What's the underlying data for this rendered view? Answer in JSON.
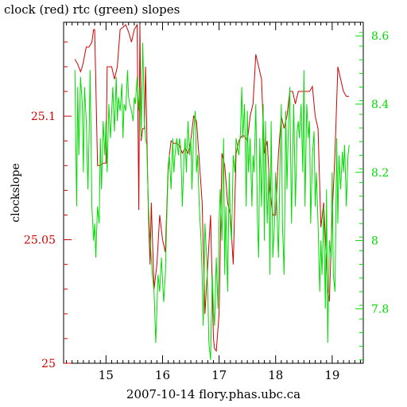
{
  "chart_data": {
    "type": "line",
    "title": "clock (red) rtc (green) slopes",
    "xlabel": "2007-10-14 flory.phas.ubc.ca",
    "ylabel": "clockslope",
    "x_ticks": [
      "15",
      "16",
      "17",
      "18",
      "19"
    ],
    "y_left_ticks": [
      "25",
      "25.05",
      "25.1"
    ],
    "y_right_ticks": [
      "7.8",
      "8",
      "8.2",
      "8.4",
      "8.6"
    ],
    "xlim": [
      14.25,
      19.55
    ],
    "ylim_left": [
      25.0,
      25.138
    ],
    "ylim_right": [
      7.64,
      8.64
    ],
    "grid": false,
    "series": [
      {
        "name": "clock",
        "color": "#d40000",
        "axis": "left",
        "x": [
          14.45,
          14.5,
          14.55,
          14.58,
          14.6,
          14.65,
          14.7,
          14.75,
          14.78,
          14.8,
          14.85,
          14.9,
          14.95,
          15.0,
          15.02,
          15.05,
          15.1,
          15.15,
          15.2,
          15.25,
          15.3,
          15.35,
          15.4,
          15.45,
          15.5,
          15.55,
          15.58,
          15.6,
          15.62,
          15.65,
          15.68,
          15.7,
          15.72,
          15.75,
          15.78,
          15.8,
          15.85,
          15.9,
          15.95,
          16.0,
          16.05,
          16.1,
          16.15,
          16.2,
          16.25,
          16.3,
          16.35,
          16.4,
          16.45,
          16.5,
          16.55,
          16.6,
          16.65,
          16.7,
          16.75,
          16.8,
          16.85,
          16.9,
          16.92,
          16.95,
          17.0,
          17.05,
          17.1,
          17.15,
          17.2,
          17.25,
          17.3,
          17.35,
          17.4,
          17.45,
          17.5,
          17.55,
          17.6,
          17.65,
          17.7,
          17.75,
          17.8,
          17.85,
          17.9,
          17.95,
          18.0,
          18.05,
          18.1,
          18.15,
          18.2,
          18.25,
          18.3,
          18.35,
          18.4,
          18.45,
          18.5,
          18.55,
          18.6,
          18.65,
          18.7,
          18.75,
          18.8,
          18.85,
          18.9,
          18.92,
          18.95,
          19.0,
          19.05,
          19.1,
          19.15,
          19.2,
          19.25,
          19.3
        ],
        "y": [
          25.123,
          25.121,
          25.118,
          25.12,
          25.122,
          25.128,
          25.128,
          25.13,
          25.135,
          25.135,
          25.08,
          25.08,
          25.081,
          25.081,
          25.12,
          25.12,
          25.12,
          25.115,
          25.12,
          25.135,
          25.136,
          25.137,
          25.134,
          25.13,
          25.135,
          25.137,
          25.062,
          25.137,
          25.09,
          25.095,
          25.095,
          25.12,
          25.095,
          25.06,
          25.04,
          25.065,
          25.03,
          25.04,
          25.06,
          25.05,
          25.045,
          25.08,
          25.09,
          25.089,
          25.089,
          25.088,
          25.085,
          25.087,
          25.085,
          25.09,
          25.1,
          25.098,
          25.082,
          25.065,
          25.02,
          25.04,
          25.06,
          25.01,
          25.006,
          25.005,
          25.02,
          25.085,
          25.08,
          25.065,
          25.06,
          25.04,
          25.085,
          25.09,
          25.092,
          25.092,
          25.09,
          25.1,
          25.105,
          25.125,
          25.12,
          25.115,
          25.085,
          25.09,
          25.07,
          25.06,
          25.06,
          25.085,
          25.1,
          25.095,
          25.1,
          25.11,
          25.11,
          25.105,
          25.11,
          25.11,
          25.11,
          25.11,
          25.11,
          25.112,
          25.1,
          25.095,
          25.055,
          25.065,
          25.04,
          25.03,
          25.025,
          25.06,
          25.085,
          25.12,
          25.115,
          25.11,
          25.108,
          25.108
        ]
      },
      {
        "name": "rtc",
        "color": "#00dd00",
        "axis": "right",
        "x": [
          14.45,
          14.48,
          14.5,
          14.52,
          14.55,
          14.58,
          14.6,
          14.62,
          14.65,
          14.68,
          14.7,
          14.72,
          14.75,
          14.78,
          14.8,
          14.82,
          14.85,
          14.88,
          14.9,
          14.92,
          14.95,
          14.98,
          15.0,
          15.02,
          15.05,
          15.08,
          15.1,
          15.12,
          15.15,
          15.18,
          15.2,
          15.22,
          15.25,
          15.28,
          15.3,
          15.32,
          15.35,
          15.38,
          15.4,
          15.42,
          15.45,
          15.48,
          15.5,
          15.52,
          15.55,
          15.58,
          15.6,
          15.62,
          15.65,
          15.68,
          15.7,
          15.72,
          15.75,
          15.78,
          15.8,
          15.82,
          15.85,
          15.88,
          15.9,
          15.92,
          15.95,
          15.98,
          16.0,
          16.02,
          16.05,
          16.08,
          16.1,
          16.12,
          16.15,
          16.18,
          16.2,
          16.22,
          16.25,
          16.28,
          16.3,
          16.32,
          16.35,
          16.38,
          16.4,
          16.42,
          16.45,
          16.48,
          16.5,
          16.52,
          16.55,
          16.58,
          16.6,
          16.62,
          16.65,
          16.68,
          16.7,
          16.72,
          16.75,
          16.78,
          16.8,
          16.82,
          16.85,
          16.88,
          16.9,
          16.92,
          16.95,
          16.98,
          17.0,
          17.02,
          17.05,
          17.08,
          17.1,
          17.12,
          17.15,
          17.18,
          17.2,
          17.22,
          17.25,
          17.28,
          17.3,
          17.32,
          17.35,
          17.38,
          17.4,
          17.42,
          17.45,
          17.48,
          17.5,
          17.52,
          17.55,
          17.58,
          17.6,
          17.62,
          17.65,
          17.68,
          17.7,
          17.72,
          17.75,
          17.78,
          17.8,
          17.82,
          17.85,
          17.88,
          17.9,
          17.92,
          17.95,
          17.98,
          18.0,
          18.02,
          18.05,
          18.08,
          18.1,
          18.12,
          18.15,
          18.18,
          18.2,
          18.22,
          18.25,
          18.28,
          18.3,
          18.32,
          18.35,
          18.38,
          18.4,
          18.42,
          18.45,
          18.48,
          18.5,
          18.52,
          18.55,
          18.58,
          18.6,
          18.62,
          18.65,
          18.68,
          18.7,
          18.72,
          18.75,
          18.78,
          18.8,
          18.82,
          18.85,
          18.88,
          18.9,
          18.92,
          18.95,
          18.98,
          19.0,
          19.02,
          19.05,
          19.08,
          19.1,
          19.12,
          19.15,
          19.18,
          19.2,
          19.22,
          19.25,
          19.28,
          19.3
        ],
        "y": [
          8.5,
          8.1,
          8.45,
          8.25,
          8.48,
          8.4,
          8.2,
          8.45,
          8.35,
          8.15,
          8.3,
          8.5,
          8.1,
          8.0,
          8.05,
          7.95,
          8.1,
          8.05,
          8.3,
          8.15,
          8.35,
          8.25,
          8.35,
          8.2,
          8.4,
          8.3,
          8.38,
          8.45,
          8.32,
          8.48,
          8.35,
          8.42,
          8.38,
          8.46,
          8.3,
          8.4,
          8.38,
          8.5,
          8.42,
          8.4,
          8.38,
          8.35,
          8.42,
          8.4,
          8.48,
          8.38,
          8.45,
          8.3,
          8.58,
          8.35,
          8.3,
          8.28,
          8.1,
          8.0,
          7.95,
          7.9,
          7.85,
          7.7,
          7.8,
          7.9,
          7.85,
          7.95,
          7.88,
          7.82,
          7.9,
          8.1,
          8.2,
          8.25,
          8.15,
          8.3,
          8.2,
          8.25,
          8.3,
          8.25,
          8.3,
          8.28,
          8.1,
          8.25,
          8.3,
          8.2,
          8.35,
          8.25,
          8.3,
          8.15,
          8.32,
          8.38,
          8.2,
          8.25,
          8.1,
          8.0,
          7.9,
          7.75,
          8.05,
          7.95,
          7.85,
          7.7,
          7.65,
          7.9,
          7.8,
          7.75,
          7.95,
          7.8,
          8.05,
          8.15,
          8.0,
          8.3,
          7.9,
          8.1,
          7.85,
          8.2,
          8.05,
          8.0,
          8.25,
          8.2,
          8.3,
          8.28,
          8.25,
          8.32,
          8.45,
          8.3,
          8.4,
          8.1,
          8.38,
          8.2,
          8.3,
          8.1,
          8.25,
          8.2,
          8.4,
          8.05,
          7.95,
          8.3,
          8.1,
          8.4,
          8.0,
          8.35,
          8.05,
          8.2,
          7.9,
          8.35,
          7.95,
          8.05,
          8.2,
          8.1,
          7.95,
          8.25,
          8.4,
          8.05,
          7.9,
          8.38,
          8.15,
          8.3,
          8.45,
          8.05,
          8.25,
          8.4,
          8.1,
          8.32,
          8.35,
          8.3,
          8.4,
          8.2,
          8.5,
          8.1,
          8.4,
          8.3,
          8.35,
          8.05,
          8.25,
          8.32,
          8.1,
          8.2,
          8.05,
          7.85,
          8.0,
          7.9,
          8.1,
          7.8,
          8.15,
          7.7,
          8.0,
          7.95,
          8.2,
          7.9,
          7.85,
          8.3,
          8.05,
          8.25,
          8.15,
          8.26,
          8.2,
          8.28,
          8.1,
          8.25,
          8.28
        ]
      }
    ]
  }
}
